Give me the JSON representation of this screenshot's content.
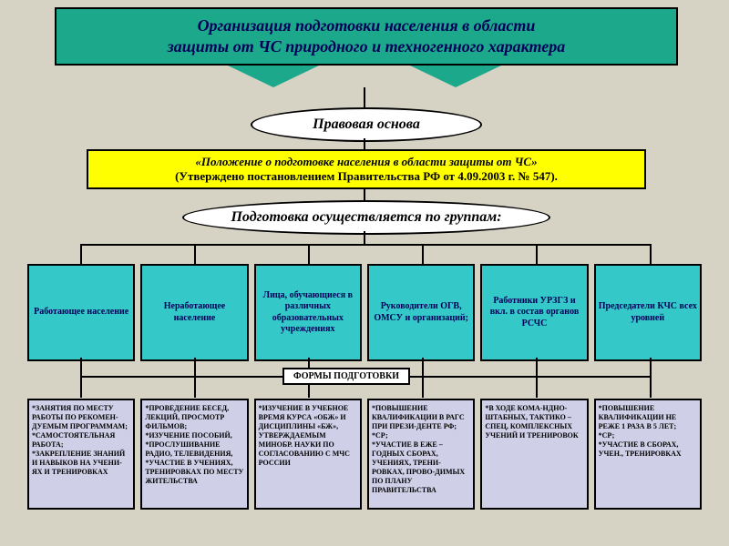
{
  "title": {
    "line1": "Организация подготовки населения в области",
    "line2": "защиты от ЧС природного и техногенного характера"
  },
  "legal_basis_label": "Правовая основа",
  "regulation": {
    "line1": "«Положение о подготовке населения  в области защиты от ЧС»",
    "line2": "(Утверждено постановлением Правительства РФ от 4.09.2003 г. № 547)."
  },
  "groups_label": "Подготовка осуществляется по группам:",
  "categories": [
    "Работающее население",
    "Неработающее население",
    "Лица, обучающиеся в различных образовательных учреждениях",
    "Руководители ОГВ, ОМСУ и организаций;",
    "Работники УРЗГЗ и вкл. в состав органов РСЧС",
    "Председатели КЧС всех уровней"
  ],
  "forms_label": "ФОРМЫ ПОДГОТОВКИ",
  "forms": [
    "*ЗАНЯТИЯ ПО МЕСТУ РАБОТЫ ПО РЕКОМЕН-ДУЕМЫМ ПРОГРАММАМ;\n*САМОСТОЯТЕЛЬНАЯ РАБОТА;\n*ЗАКРЕПЛЕНИЕ ЗНАНИЙ И НАВЫКОВ НА УЧЕНИ-ЯХ И ТРЕНИРОВКАХ",
    "*ПРОВЕДЕНИЕ БЕСЕД, ЛЕКЦИЙ, ПРОСМОТР ФИЛЬМОВ;\n*ИЗУЧЕНИЕ ПОСОБИЙ,\n*ПРОСЛУШИВАНИЕ РАДИО, ТЕЛЕВИДЕНИЯ,\n*УЧАСТИЕ В УЧЕНИЯХ, ТРЕНИРОВКАХ ПО МЕСТУ ЖИТЕЛЬСТВА",
    "*ИЗУЧЕНИЕ В УЧЕБНОЕ ВРЕМЯ КУРСА «ОБЖ» И ДИСЦИПЛИНЫ «БЖ», УТВЕРЖДАЕМЫМ МИНОБР. НАУКИ ПО СОГЛАСОВАНИЮ С МЧС РОССИИ",
    "*ПОВЫШЕНИЕ КВАЛИФИКАЦИИ В РАГС ПРИ ПРЕЗИ-ДЕНТЕ РФ;\n*СР;\n*УЧАСТИЕ В ЕЖЕ – ГОДНЫХ СБОРАХ, УЧЕНИЯХ, ТРЕНИ-РОВКАХ, ПРОВО-ДИМЫХ ПО ПЛАНУ ПРАВИТЕЛЬСТВА",
    "*В ХОДЕ КОМА-НДНО-ШТАБНЫХ, ТАКТИКО – СПЕЦ, КОМПЛЕКСНЫХ УЧЕНИЙ И ТРЕНИРОВОК",
    "*ПОВЫШЕНИЕ КВАЛИФИКАЦИИ НЕ РЕЖЕ 1 РАЗА В 5 ЛЕТ;\n*СР;\n*УЧАСТИЕ В СБОРАХ, УЧЕН., ТРЕНИРОВКАХ"
  ],
  "colors": {
    "title_bg": "#1ca88a",
    "title_text": "#00005a",
    "yellow": "#ffff00",
    "cat_bg": "#34c8c8",
    "form_bg": "#cfcfe8",
    "canvas": "#d6d2c4"
  }
}
